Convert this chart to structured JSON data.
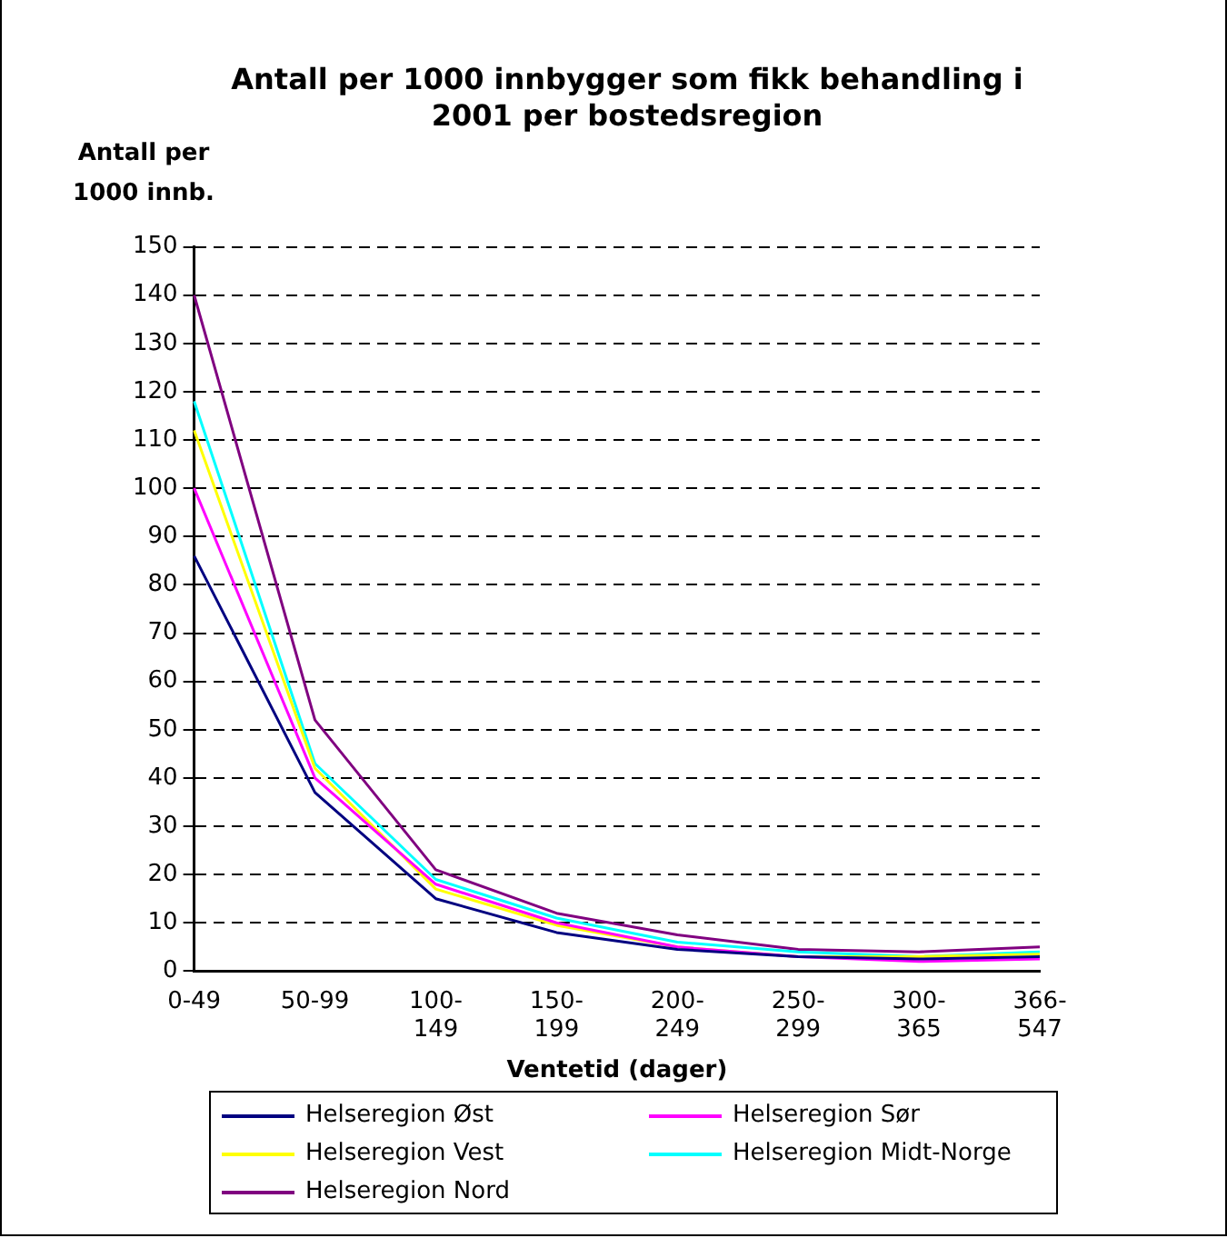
{
  "chart_data": {
    "type": "line",
    "title": "Antall per 1000 innbygger som fikk behandling i 2001 per bostedsregion",
    "ylabel": "Antall per 1000 innb.",
    "xlabel": "Ventetid (dager)",
    "categories": [
      "0-49",
      "50-99",
      "100-149",
      "150-199",
      "200-249",
      "250-299",
      "300-365",
      "366-547"
    ],
    "series": [
      {
        "name": "Helseregion Øst",
        "color": "#000080",
        "values": [
          86,
          37,
          15,
          8,
          4.5,
          3,
          2.5,
          3
        ]
      },
      {
        "name": "Helseregion Sør",
        "color": "#ff00ff",
        "values": [
          100,
          40,
          18,
          10,
          5,
          3,
          2,
          2.5
        ]
      },
      {
        "name": "Helseregion Vest",
        "color": "#ffff00",
        "values": [
          112,
          42,
          17,
          9.5,
          5,
          3,
          3,
          3.5
        ]
      },
      {
        "name": "Helseregion Midt-Norge",
        "color": "#00ffff",
        "values": [
          118,
          43,
          19,
          11,
          6,
          4,
          3,
          4
        ]
      },
      {
        "name": "Helseregion Nord",
        "color": "#800080",
        "values": [
          140,
          52,
          21,
          12,
          7.5,
          4.5,
          4,
          5
        ]
      }
    ],
    "ylim": [
      0,
      150
    ],
    "yticks": [
      0,
      10,
      20,
      30,
      40,
      50,
      60,
      70,
      80,
      90,
      100,
      110,
      120,
      130,
      140,
      150
    ],
    "grid": "y",
    "legend": "bottom",
    "marker": "none",
    "line_style": "solid"
  }
}
